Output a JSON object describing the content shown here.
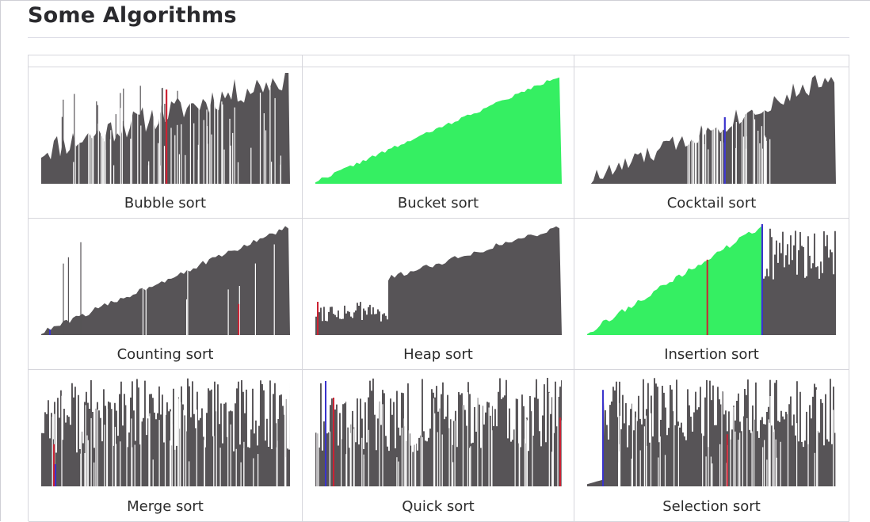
{
  "page": {
    "title": "Some Algorithms"
  },
  "colors": {
    "bar": "#575457",
    "sorted": "#35ef62",
    "compare_red": "#cc2233",
    "compare_blue": "#3a33cc",
    "gap": "#ffffff"
  },
  "algorithms": [
    {
      "name": "Bubble sort",
      "visual": "bubble"
    },
    {
      "name": "Bucket sort",
      "visual": "bucket"
    },
    {
      "name": "Cocktail sort",
      "visual": "cocktail"
    },
    {
      "name": "Counting sort",
      "visual": "counting"
    },
    {
      "name": "Heap sort",
      "visual": "heap"
    },
    {
      "name": "Insertion sort",
      "visual": "insertion"
    },
    {
      "name": "Merge sort",
      "visual": "merge"
    },
    {
      "name": "Quick sort",
      "visual": "quick"
    },
    {
      "name": "Selection sort",
      "visual": "selection"
    }
  ]
}
